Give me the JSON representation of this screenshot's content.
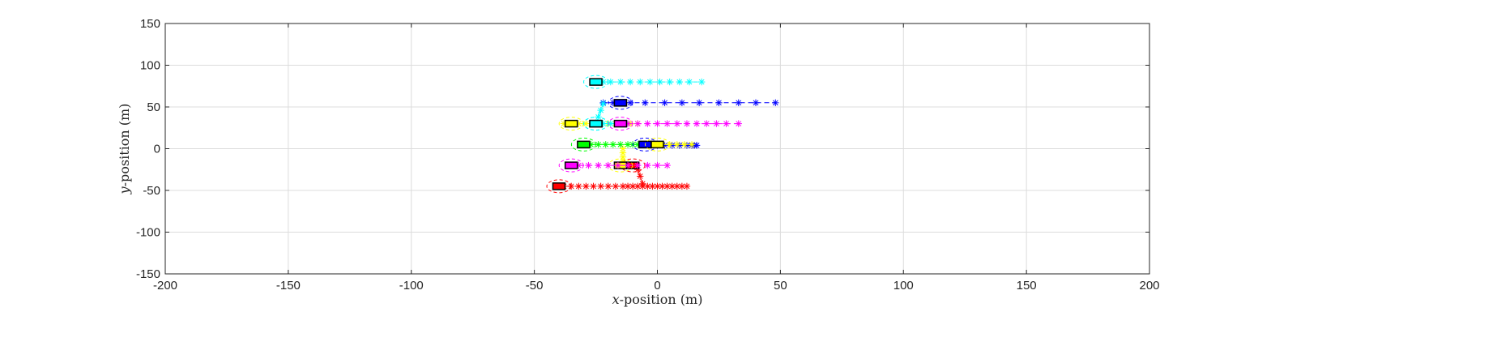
{
  "chart_data": {
    "type": "scatter",
    "title": "",
    "xlabel_var": "x",
    "xlabel_rest": "-position (m)",
    "ylabel_var": "y",
    "ylabel_rest": "-position (m)",
    "xlim": [
      -200,
      200
    ],
    "ylim": [
      -150,
      150
    ],
    "xticks": [
      -200,
      -150,
      -100,
      -50,
      0,
      50,
      100,
      150,
      200
    ],
    "yticks": [
      -150,
      -100,
      -50,
      0,
      50,
      100,
      150
    ],
    "grid": true,
    "legend": "none",
    "marker": "*",
    "vehicles": [
      {
        "color": "#ff0000",
        "x": -40,
        "y": -45,
        "trajectory": {
          "x": [
            -38,
            -35,
            -32,
            -29,
            -26,
            -23,
            -20,
            -17,
            -14,
            -12,
            -10,
            -8,
            -6,
            -4,
            -2,
            0,
            2,
            4,
            6,
            8,
            10,
            12
          ],
          "y": [
            -45,
            -45,
            -45,
            -45,
            -45,
            -45,
            -45,
            -45,
            -45,
            -45,
            -45,
            -45,
            -45,
            -45,
            -45,
            -45,
            -45,
            -45,
            -45,
            -45,
            -45,
            -45
          ]
        }
      },
      {
        "color": "#ff0000",
        "x": -10,
        "y": -20,
        "trajectory": {
          "x": [
            -8,
            -7,
            -6
          ],
          "y": [
            -25,
            -33,
            -42
          ]
        }
      },
      {
        "color": "#ffff00",
        "x": -15,
        "y": -20,
        "trajectory": {
          "x": [
            -14,
            -14,
            -14,
            -14
          ],
          "y": [
            -15,
            -10,
            -5,
            0
          ]
        }
      },
      {
        "color": "#ff00ff",
        "x": -35,
        "y": -20,
        "trajectory": {
          "x": [
            -32,
            -28,
            -24,
            -20,
            -16,
            -12,
            -8,
            -4,
            0,
            4
          ],
          "y": [
            -20,
            -20,
            -20,
            -20,
            -20,
            -20,
            -20,
            -20,
            -20,
            -20
          ]
        }
      },
      {
        "color": "#00ff00",
        "x": -30,
        "y": 5,
        "trajectory": {
          "x": [
            -27,
            -24,
            -21,
            -18,
            -15,
            -12,
            -10,
            -8,
            -6
          ],
          "y": [
            5,
            5,
            5,
            5,
            5,
            5,
            5,
            5,
            5
          ]
        }
      },
      {
        "color": "#0000ff",
        "x": -5,
        "y": 5,
        "trajectory": {
          "x": [
            -3,
            0,
            3,
            6,
            9,
            12,
            14,
            15,
            16
          ],
          "y": [
            5,
            4,
            4,
            4,
            4,
            4,
            4,
            4,
            4
          ]
        }
      },
      {
        "color": "#ffff00",
        "x": -35,
        "y": 30,
        "trajectory": {
          "x": [
            -38,
            -32,
            -29,
            -26,
            -23,
            -20,
            -17,
            -14,
            -11,
            -8
          ],
          "y": [
            30,
            30,
            30,
            30,
            30,
            30,
            30,
            30,
            30,
            30
          ]
        }
      },
      {
        "color": "#ffff00",
        "x": 0,
        "y": 5,
        "trajectory": {
          "x": [
            2,
            5,
            8,
            11,
            14
          ],
          "y": [
            5,
            5,
            5,
            5,
            5
          ]
        }
      },
      {
        "color": "#00ffff",
        "x": -25,
        "y": 30,
        "trajectory": {
          "x": [
            -22,
            -19,
            -16,
            -13
          ],
          "y": [
            30,
            30,
            30,
            30
          ]
        }
      },
      {
        "color": "#ff00ff",
        "x": -15,
        "y": 30,
        "trajectory": {
          "x": [
            -12,
            -8,
            -4,
            0,
            4,
            8,
            12,
            16,
            20,
            24,
            28,
            33
          ],
          "y": [
            30,
            30,
            30,
            30,
            30,
            30,
            30,
            30,
            30,
            30,
            30,
            30
          ]
        }
      },
      {
        "color": "#0000ff",
        "x": -15,
        "y": 55,
        "trajectory": {
          "x": [
            -22,
            -18,
            -11,
            -5,
            3,
            10,
            17,
            25,
            33,
            40,
            48
          ],
          "y": [
            55,
            55,
            55,
            55,
            55,
            55,
            55,
            55,
            55,
            55,
            55
          ]
        }
      },
      {
        "color": "#00ffff",
        "x": -25,
        "y": 80,
        "trajectory": {
          "x": [
            -22,
            -19,
            -15,
            -11,
            -7,
            -3,
            1,
            5,
            9,
            13,
            18
          ],
          "y": [
            80,
            80,
            80,
            80,
            80,
            80,
            80,
            80,
            80,
            80,
            80
          ]
        }
      },
      {
        "color": "#00ffff",
        "x": -25,
        "y": 30,
        "trajectory": {
          "x": [
            -24,
            -23,
            -22
          ],
          "y": [
            38,
            46,
            54
          ]
        }
      }
    ]
  }
}
